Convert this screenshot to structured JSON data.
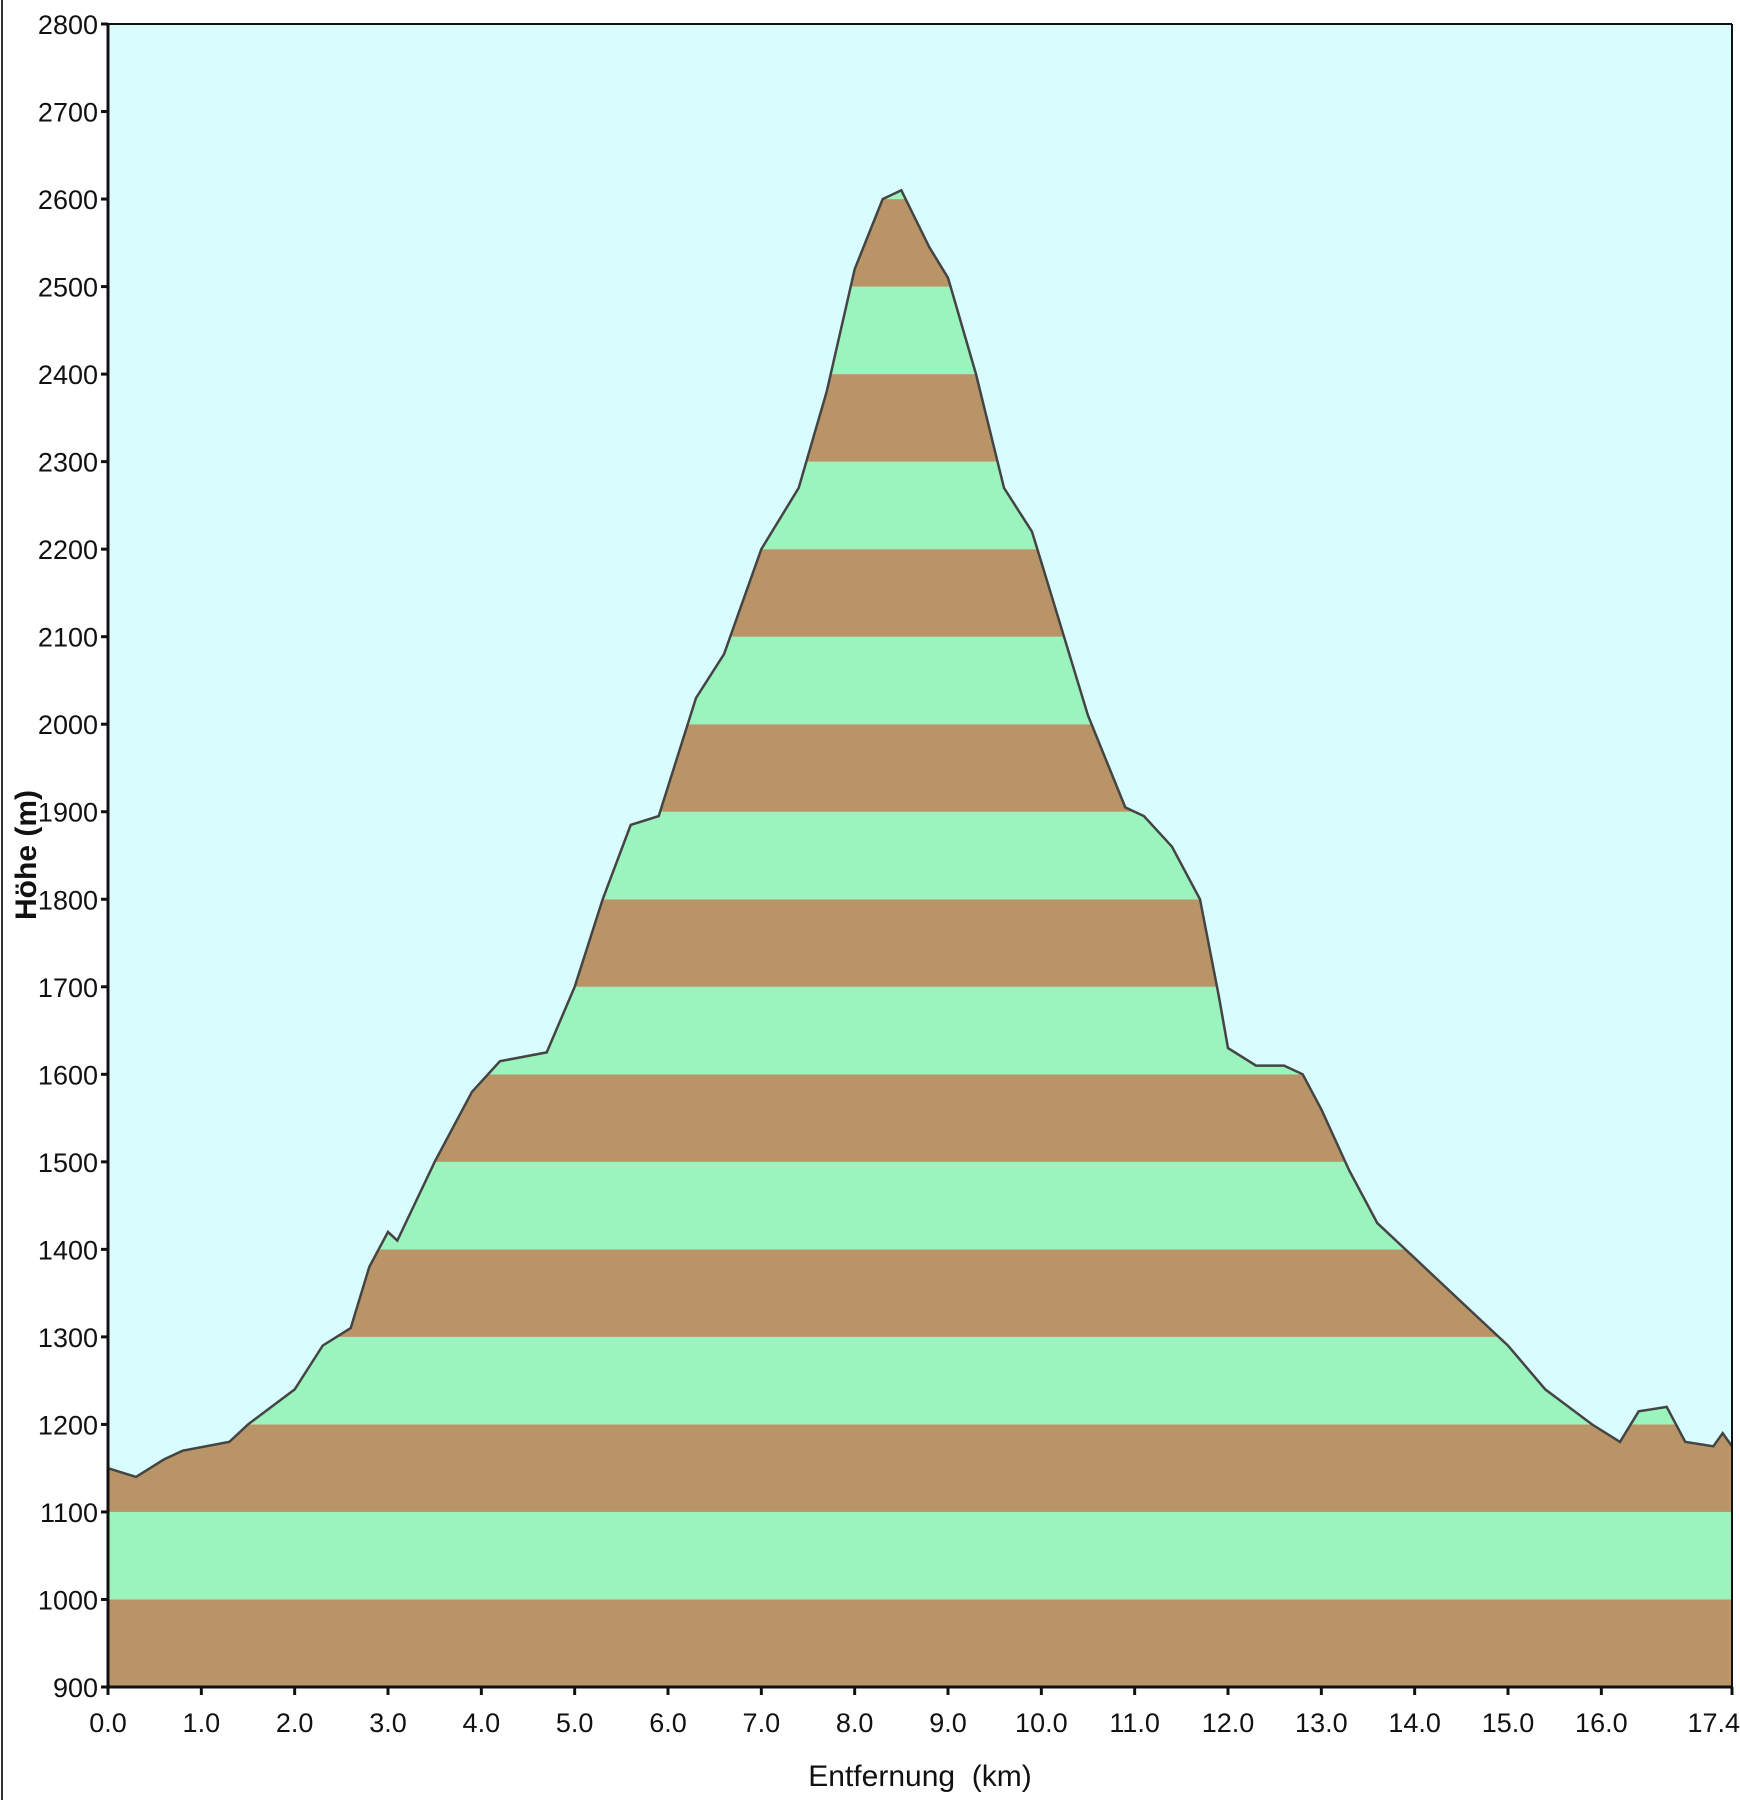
{
  "chart_data": {
    "type": "area",
    "title": "",
    "xlabel": "Entfernung  (km)",
    "ylabel": "Höhe (m)",
    "xlim": [
      0.0,
      17.4
    ],
    "ylim": [
      900,
      2800
    ],
    "x_ticks": [
      "0.0",
      "1.0",
      "2.0",
      "3.0",
      "4.0",
      "5.0",
      "6.0",
      "7.0",
      "8.0",
      "9.0",
      "10.0",
      "11.0",
      "12.0",
      "13.0",
      "14.0",
      "15.0",
      "16.0",
      "17.4"
    ],
    "y_ticks": [
      "900",
      "1000",
      "1100",
      "1200",
      "1300",
      "1400",
      "1500",
      "1600",
      "1700",
      "1800",
      "1900",
      "2000",
      "2100",
      "2200",
      "2300",
      "2400",
      "2500",
      "2600",
      "2700",
      "2800"
    ],
    "grid": false,
    "band_step": 100,
    "colors": {
      "background": "#d9fdfe",
      "band_brown": "#b99467",
      "band_green": "#9bf4be",
      "line": "#444444"
    },
    "series": [
      {
        "x": [
          0.0,
          0.3,
          0.6,
          0.8,
          1.3,
          1.5,
          2.0,
          2.3,
          2.6,
          2.8,
          3.0,
          3.1,
          3.5,
          3.9,
          4.2,
          4.7,
          5.0,
          5.3,
          5.6,
          5.9,
          6.3,
          6.6,
          7.0,
          7.4,
          7.7,
          8.0,
          8.3,
          8.5,
          8.8,
          9.0,
          9.3,
          9.6,
          9.9,
          10.1,
          10.5,
          10.9,
          11.1,
          11.4,
          11.7,
          11.9,
          12.0,
          12.3,
          12.6,
          12.8,
          13.0,
          13.3,
          13.6,
          14.0,
          14.5,
          15.0,
          15.4,
          15.9,
          16.2,
          16.4,
          16.7,
          16.9,
          17.2,
          17.3,
          17.4
        ],
        "y": [
          1150,
          1140,
          1160,
          1170,
          1180,
          1200,
          1240,
          1290,
          1310,
          1380,
          1420,
          1410,
          1500,
          1580,
          1615,
          1625,
          1700,
          1800,
          1885,
          1895,
          2030,
          2080,
          2200,
          2270,
          2380,
          2520,
          2600,
          2610,
          2545,
          2510,
          2400,
          2270,
          2220,
          2150,
          2010,
          1905,
          1895,
          1860,
          1800,
          1690,
          1630,
          1610,
          1610,
          1600,
          1560,
          1490,
          1430,
          1390,
          1340,
          1290,
          1240,
          1200,
          1180,
          1215,
          1220,
          1180,
          1175,
          1190,
          1175
        ]
      }
    ]
  }
}
